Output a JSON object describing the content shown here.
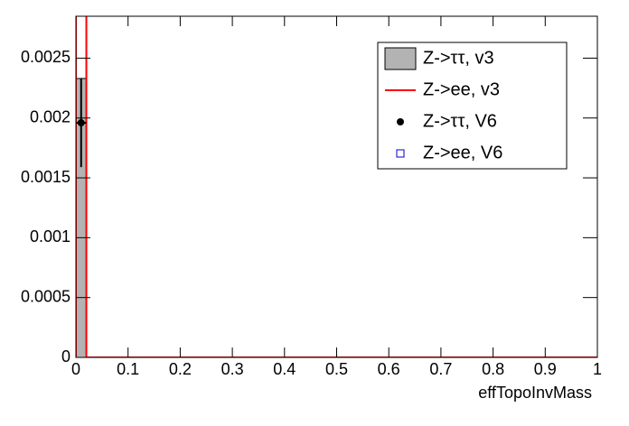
{
  "chart_data": {
    "type": "histogram",
    "x_label": "effTopoInvMass",
    "bins": [
      0,
      0.02,
      1
    ],
    "series": [
      {
        "name": "Z->ττ, v3",
        "style": "filled",
        "color": "#b3b3b3",
        "values": [
          0.00233,
          0
        ]
      },
      {
        "name": "Z->ee, v3",
        "style": "line",
        "color": "#ff0000",
        "values": [
          0.0029,
          0
        ]
      },
      {
        "name": "Z->ττ, V6",
        "style": "points",
        "color": "#000000",
        "values": [
          0.00196,
          null
        ],
        "errors": [
          0.00037,
          null
        ]
      },
      {
        "name": "Z->ee, V6",
        "style": "open-squares",
        "color": "#0000cc",
        "values": [
          null,
          null
        ]
      }
    ],
    "xlim": [
      0,
      1
    ],
    "xticks": [
      0,
      0.1,
      0.2,
      0.3,
      0.4,
      0.5,
      0.6,
      0.7,
      0.8,
      0.9,
      1
    ],
    "ylim": [
      0,
      0.00285
    ],
    "yticks": [
      0,
      0.0005,
      0.001,
      0.0015,
      0.002,
      0.0025
    ],
    "legend": "top-right"
  }
}
